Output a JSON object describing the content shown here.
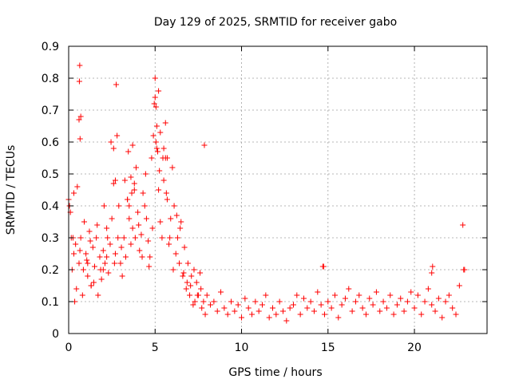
{
  "chart_data": {
    "type": "scatter",
    "title": "Day 129 of 2025, SRMTID for receiver gabo",
    "xlabel": "GPS time / hours",
    "ylabel": "SRMTID / TECUs",
    "xlim": [
      0,
      24.2
    ],
    "ylim": [
      0,
      0.9
    ],
    "xticks": [
      0,
      5,
      10,
      15,
      20
    ],
    "xtick_labels": [
      "0",
      "5",
      "10",
      "15",
      "20"
    ],
    "yticks": [
      0,
      0.1,
      0.2,
      0.3,
      0.4,
      0.5,
      0.6,
      0.7,
      0.8,
      0.9
    ],
    "ytick_labels": [
      "0",
      "0.1",
      "0.2",
      "0.3",
      "0.4",
      "0.5",
      "0.6",
      "0.7",
      "0.8",
      "0.9"
    ],
    "grid": true,
    "marker": "+",
    "series": [
      {
        "name": "SRMTID",
        "color": "#ff0000",
        "x": [
          0.0,
          0.1,
          0.2,
          0.3,
          0.4,
          0.5,
          0.6,
          0.7,
          0.8,
          0.9,
          1.0,
          1.1,
          1.2,
          1.3,
          1.4,
          1.5,
          1.6,
          1.7,
          1.8,
          1.9,
          2.0,
          2.1,
          2.2,
          2.3,
          2.4,
          2.5,
          2.6,
          2.7,
          2.8,
          2.9,
          3.0,
          3.1,
          3.2,
          3.3,
          3.4,
          3.5,
          3.6,
          3.7,
          3.8,
          3.9,
          4.0,
          4.1,
          4.2,
          4.3,
          4.4,
          4.5,
          4.6,
          4.7,
          4.8,
          4.9,
          5.0,
          5.1,
          5.2,
          5.3,
          5.4,
          5.5,
          5.6,
          5.7,
          5.8,
          5.9,
          6.0,
          6.1,
          6.2,
          6.3,
          6.4,
          6.5,
          6.6,
          6.7,
          6.8,
          6.9,
          7.0,
          7.1,
          7.2,
          7.3,
          7.4,
          7.5,
          7.6,
          7.7,
          7.8,
          7.9,
          8.0,
          8.2,
          8.4,
          8.6,
          8.8,
          9.0,
          9.2,
          9.4,
          9.6,
          9.8,
          10.0,
          10.2,
          10.4,
          10.6,
          10.8,
          11.0,
          11.2,
          11.4,
          11.6,
          11.8,
          12.0,
          12.2,
          12.4,
          12.6,
          12.8,
          13.0,
          13.2,
          13.4,
          13.6,
          13.8,
          14.0,
          14.2,
          14.4,
          14.6,
          14.8,
          15.0,
          15.2,
          15.4,
          15.6,
          15.8,
          16.0,
          16.2,
          16.4,
          16.6,
          16.8,
          17.0,
          17.2,
          17.4,
          17.6,
          17.8,
          18.0,
          18.2,
          18.4,
          18.6,
          18.8,
          19.0,
          19.2,
          19.4,
          19.6,
          19.8,
          20.0,
          20.2,
          20.4,
          20.6,
          20.8,
          21.0,
          21.2,
          21.4,
          21.6,
          21.8,
          22.0,
          22.2,
          22.4,
          22.6,
          22.8,
          0.05,
          0.25,
          0.45,
          0.65,
          0.85,
          1.05,
          1.25,
          1.45,
          1.65,
          1.85,
          2.05,
          2.25,
          2.45,
          2.65,
          2.85,
          3.05,
          3.25,
          3.45,
          3.65,
          3.85,
          4.05,
          4.25,
          4.45,
          4.65,
          4.85,
          5.05,
          5.25,
          5.45,
          5.65,
          5.85,
          6.05,
          6.25,
          6.45,
          6.65,
          6.85,
          7.05,
          7.25,
          7.45,
          7.65,
          7.85,
          0.6,
          0.62,
          0.64,
          0.66,
          0.7,
          2.6,
          2.7,
          2.75,
          5.0,
          5.05,
          5.1,
          5.15,
          5.2,
          4.95,
          5.3,
          5.5,
          5.6,
          5.7,
          3.6,
          3.7,
          3.8,
          3.4,
          3.5,
          0.15,
          0.3,
          0.35,
          1.1,
          1.3,
          2.0,
          2.2,
          14.7,
          14.75,
          21.0,
          21.05,
          22.9,
          22.85
        ],
        "y": [
          0.42,
          0.38,
          0.2,
          0.44,
          0.28,
          0.46,
          0.22,
          0.3,
          0.12,
          0.35,
          0.25,
          0.18,
          0.32,
          0.15,
          0.27,
          0.21,
          0.3,
          0.12,
          0.24,
          0.17,
          0.26,
          0.22,
          0.33,
          0.19,
          0.28,
          0.36,
          0.47,
          0.25,
          0.62,
          0.4,
          0.22,
          0.18,
          0.3,
          0.24,
          0.42,
          0.36,
          0.28,
          0.33,
          0.45,
          0.52,
          0.38,
          0.26,
          0.31,
          0.44,
          0.4,
          0.36,
          0.29,
          0.24,
          0.55,
          0.62,
          0.74,
          0.58,
          0.45,
          0.35,
          0.3,
          0.48,
          0.66,
          0.42,
          0.28,
          0.36,
          0.52,
          0.4,
          0.25,
          0.3,
          0.22,
          0.35,
          0.18,
          0.27,
          0.14,
          0.22,
          0.12,
          0.18,
          0.09,
          0.1,
          0.16,
          0.12,
          0.19,
          0.08,
          0.1,
          0.06,
          0.12,
          0.09,
          0.1,
          0.07,
          0.13,
          0.08,
          0.06,
          0.1,
          0.07,
          0.09,
          0.05,
          0.11,
          0.08,
          0.06,
          0.1,
          0.07,
          0.09,
          0.12,
          0.05,
          0.08,
          0.06,
          0.1,
          0.07,
          0.04,
          0.08,
          0.09,
          0.12,
          0.06,
          0.11,
          0.08,
          0.1,
          0.07,
          0.13,
          0.09,
          0.06,
          0.1,
          0.08,
          0.12,
          0.05,
          0.09,
          0.11,
          0.14,
          0.07,
          0.1,
          0.12,
          0.08,
          0.06,
          0.11,
          0.09,
          0.13,
          0.07,
          0.1,
          0.08,
          0.12,
          0.06,
          0.09,
          0.11,
          0.07,
          0.1,
          0.13,
          0.08,
          0.12,
          0.06,
          0.1,
          0.14,
          0.09,
          0.07,
          0.11,
          0.05,
          0.1,
          0.12,
          0.08,
          0.06,
          0.15,
          0.34,
          0.4,
          0.3,
          0.14,
          0.26,
          0.2,
          0.23,
          0.29,
          0.16,
          0.34,
          0.2,
          0.4,
          0.3,
          0.6,
          0.22,
          0.3,
          0.27,
          0.48,
          0.57,
          0.44,
          0.3,
          0.34,
          0.24,
          0.5,
          0.21,
          0.33,
          0.6,
          0.51,
          0.55,
          0.44,
          0.3,
          0.2,
          0.37,
          0.33,
          0.19,
          0.16,
          0.15,
          0.2,
          0.12,
          0.14,
          0.59,
          0.67,
          0.79,
          0.84,
          0.61,
          0.68,
          0.58,
          0.48,
          0.78,
          0.8,
          0.71,
          0.65,
          0.57,
          0.76,
          0.72,
          0.63,
          0.58,
          0.55,
          0.55,
          0.49,
          0.59,
          0.47,
          0.42,
          0.4,
          0.3,
          0.25,
          0.1,
          0.22,
          0.15,
          0.2,
          0.24,
          0.21,
          0.21,
          0.19,
          0.21,
          0.2,
          0.2
        ]
      }
    ]
  }
}
